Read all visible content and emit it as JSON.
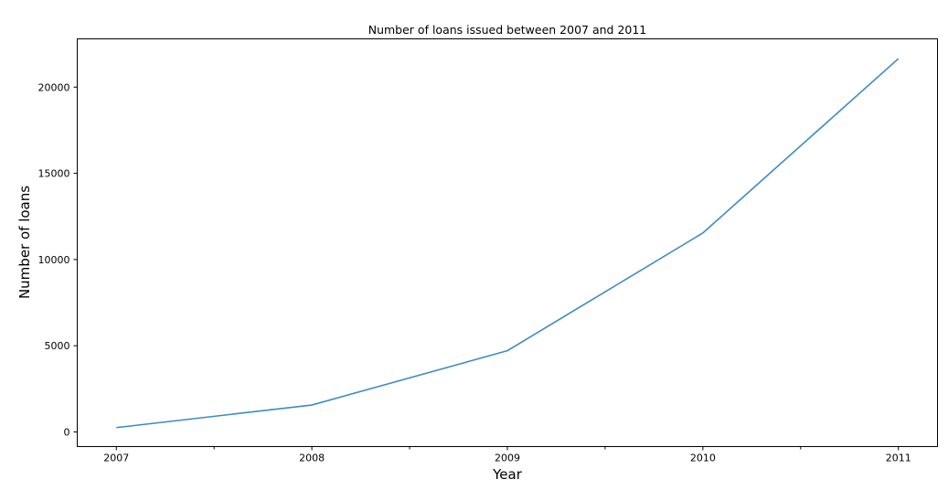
{
  "chart_data": {
    "type": "line",
    "title": "Number of loans issued between 2007 and 2011",
    "xlabel": "Year",
    "ylabel": "Number of loans",
    "x": [
      "2007",
      "2008",
      "2009",
      "2010",
      "2011"
    ],
    "series": [
      {
        "values": [
          250,
          1560,
          4710,
          11540,
          21650
        ],
        "color": "#3b8bc2"
      }
    ],
    "xlim": [
      2006.8,
      2011.2
    ],
    "ylim": [
      -850,
      22800
    ],
    "yticks": [
      "0",
      "5000",
      "10000",
      "15000",
      "20000"
    ],
    "xminor_ticks": [
      2007.5,
      2008.5,
      2009.5,
      2010.5
    ],
    "grid": false,
    "legend": "none"
  }
}
